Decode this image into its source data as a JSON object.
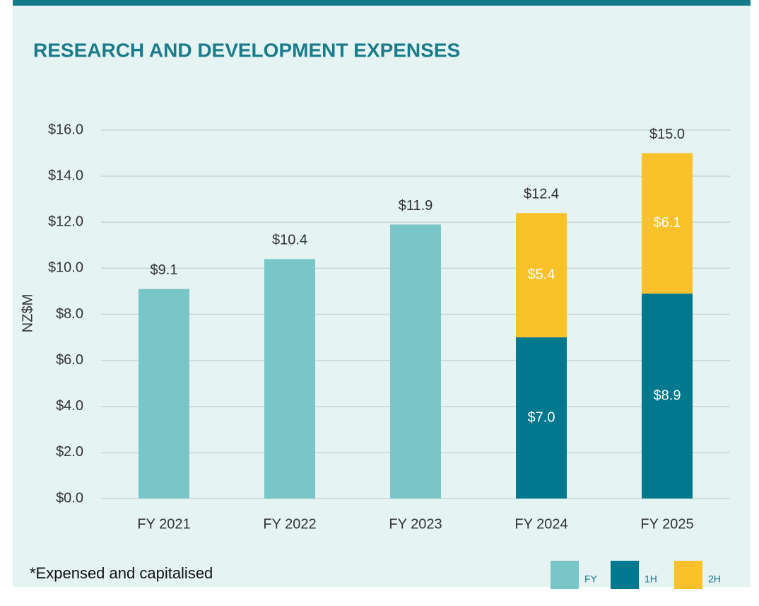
{
  "chart_data": {
    "type": "stacked-bar",
    "title": "RESEARCH AND DEVELOPMENT EXPENSES",
    "y_label": "NZ$M",
    "categories": [
      "FY 2021",
      "FY 2022",
      "FY 2023",
      "FY 2024",
      "FY 2025"
    ],
    "series": [
      {
        "name": "FY",
        "color": "#79c6c9",
        "values": [
          9.1,
          10.4,
          11.9,
          null,
          null
        ],
        "value_labels": [
          "$9.1",
          "$10.4",
          "$11.9",
          null,
          null
        ]
      },
      {
        "name": "1H",
        "color": "#00788d",
        "values": [
          null,
          null,
          null,
          7.0,
          8.9
        ],
        "value_labels": [
          null,
          null,
          null,
          "$7.0",
          "$8.9"
        ]
      },
      {
        "name": "2H",
        "color": "#fbc12a",
        "values": [
          null,
          null,
          null,
          5.4,
          6.1
        ],
        "value_labels": [
          null,
          null,
          null,
          "$5.4",
          "$6.1"
        ]
      }
    ],
    "totals": [
      null,
      null,
      null,
      12.4,
      15.0
    ],
    "total_labels": [
      null,
      null,
      null,
      "$12.4",
      "$15.0"
    ],
    "ylim": [
      0,
      16
    ],
    "yticks": [
      {
        "value": 0,
        "label": "$0.0"
      },
      {
        "value": 2,
        "label": "$2.0"
      },
      {
        "value": 4,
        "label": "$4.0"
      },
      {
        "value": 6,
        "label": "$6.0"
      },
      {
        "value": 8,
        "label": "$8.0"
      },
      {
        "value": 10,
        "label": "$10.0"
      },
      {
        "value": 12,
        "label": "$12.0"
      },
      {
        "value": 14,
        "label": "$14.0"
      },
      {
        "value": 16,
        "label": "$16.0"
      }
    ],
    "grid": true,
    "legend": "bottom-right",
    "footnote": "*Expensed and capitalised"
  }
}
